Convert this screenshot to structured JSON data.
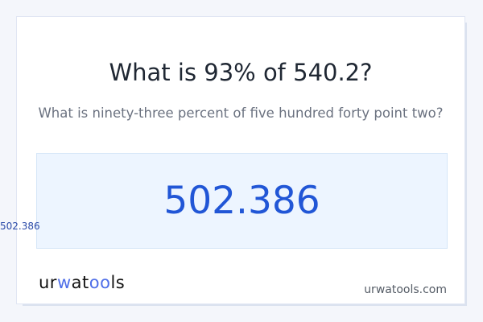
{
  "side_value": "502.386",
  "card": {
    "title": "What is 93% of 540.2?",
    "subtitle": "What is ninety-three percent of five hundred forty point two?",
    "result": "502.386",
    "logo": {
      "part1": "ur",
      "part2": "w",
      "part3": "at",
      "part4": "oo",
      "part5": "ls"
    },
    "domain": "urwatools.com"
  },
  "colors": {
    "accent": "#2156d6",
    "result_bg": "#edf5ff",
    "logo_accent": "#4e6ee8"
  }
}
